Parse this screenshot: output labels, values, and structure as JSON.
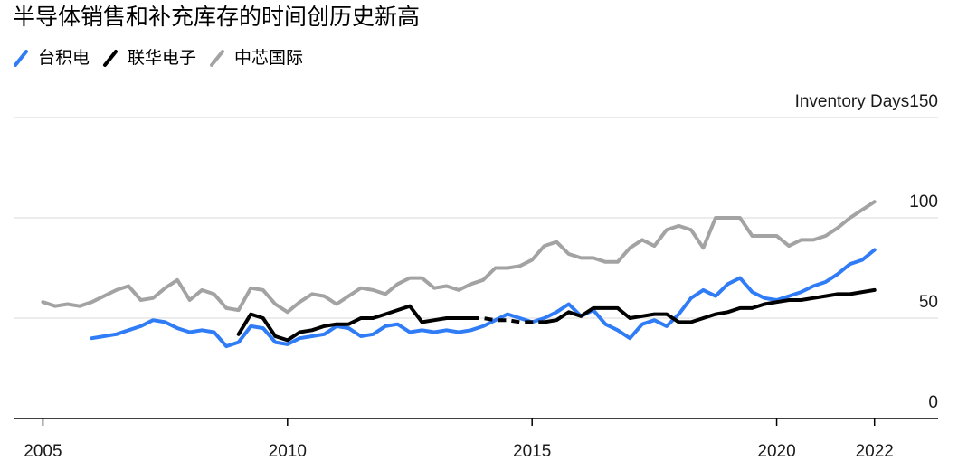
{
  "title": "半导体销售和补充库存的时间创历史新高",
  "colors": {
    "tsmc": "#2f7cf6",
    "umc": "#000000",
    "smic": "#a3a3a3",
    "grid": "#e6e6e6",
    "axis": "#000000"
  },
  "legend": [
    {
      "name": "台积电",
      "color": "#2f7cf6"
    },
    {
      "name": "联华电子",
      "color": "#000000"
    },
    {
      "name": "中芯国际",
      "color": "#a3a3a3"
    }
  ],
  "chart_data": {
    "type": "line",
    "title": "半导体销售和补充库存的时间创历史新高",
    "ylabel": "Inventory Days",
    "xlim": [
      2004.4,
      2023.3
    ],
    "ylim": [
      0,
      150
    ],
    "yticks": [
      0,
      50,
      100,
      150
    ],
    "ytick_labels": [
      "0",
      "50",
      "100",
      "Inventory Days150"
    ],
    "xticks": [
      2005,
      2010,
      2015,
      2020,
      2022
    ],
    "xtick_labels": [
      "2005",
      "2010",
      "2015",
      "2020",
      "2022"
    ],
    "grid": true,
    "legend_position": "top-left",
    "series": [
      {
        "name": "台积电",
        "color": "#2f7cf6",
        "x": [
          2006.0,
          2006.25,
          2006.5,
          2006.75,
          2007.0,
          2007.25,
          2007.5,
          2007.75,
          2008.0,
          2008.25,
          2008.5,
          2008.75,
          2009.0,
          2009.25,
          2009.5,
          2009.75,
          2010.0,
          2010.25,
          2010.5,
          2010.75,
          2011.0,
          2011.25,
          2011.5,
          2011.75,
          2012.0,
          2012.25,
          2012.5,
          2012.75,
          2013.0,
          2013.25,
          2013.5,
          2013.75,
          2014.0,
          2014.25,
          2014.5,
          2014.75,
          2015.0,
          2015.25,
          2015.5,
          2015.75,
          2016.0,
          2016.25,
          2016.5,
          2016.75,
          2017.0,
          2017.25,
          2017.5,
          2017.75,
          2018.0,
          2018.25,
          2018.5,
          2018.75,
          2019.0,
          2019.25,
          2019.5,
          2019.75,
          2020.0,
          2020.25,
          2020.5,
          2020.75,
          2021.0,
          2021.25,
          2021.5,
          2021.75,
          2022.0
        ],
        "values": [
          40,
          41,
          42,
          44,
          46,
          49,
          48,
          45,
          43,
          44,
          43,
          36,
          38,
          46,
          45,
          38,
          37,
          40,
          41,
          42,
          46,
          45,
          41,
          42,
          46,
          47,
          43,
          44,
          43,
          44,
          43,
          44,
          46,
          49,
          52,
          50,
          48,
          50,
          53,
          57,
          51,
          54,
          47,
          44,
          40,
          47,
          49,
          46,
          52,
          60,
          64,
          61,
          67,
          70,
          63,
          60,
          59,
          61,
          63,
          66,
          68,
          72,
          77,
          79,
          84
        ]
      },
      {
        "name": "联华电子",
        "color": "#000000",
        "x": [
          2009.0,
          2009.25,
          2009.5,
          2009.75,
          2010.0,
          2010.25,
          2010.5,
          2010.75,
          2011.0,
          2011.25,
          2011.5,
          2011.75,
          2012.0,
          2012.25,
          2012.5,
          2012.75,
          2013.0,
          2013.25,
          2013.5,
          2013.75,
          2014.0,
          2014.25,
          2014.5,
          2014.75,
          2015.0,
          2015.25,
          2015.5,
          2015.75,
          2016.0,
          2016.25,
          2016.5,
          2016.75,
          2017.0,
          2017.25,
          2017.5,
          2017.75,
          2018.0,
          2018.25,
          2018.5,
          2018.75,
          2019.0,
          2019.25,
          2019.5,
          2019.75,
          2020.0,
          2020.25,
          2020.5,
          2020.75,
          2021.0,
          2021.25,
          2021.5,
          2021.75,
          2022.0
        ],
        "values": [
          42,
          52,
          50,
          41,
          39,
          43,
          44,
          46,
          47,
          47,
          50,
          50,
          52,
          54,
          56,
          48,
          49,
          50,
          50,
          50,
          50,
          49,
          49,
          48,
          48,
          48,
          49,
          53,
          51,
          55,
          55,
          55,
          50,
          51,
          52,
          52,
          48,
          48,
          50,
          52,
          53,
          55,
          55,
          57,
          58,
          59,
          59,
          60,
          61,
          62,
          62,
          63,
          64
        ],
        "dashed_range": [
          2013.75,
          2015.25
        ]
      },
      {
        "name": "中芯国际",
        "color": "#a3a3a3",
        "x": [
          2005.0,
          2005.25,
          2005.5,
          2005.75,
          2006.0,
          2006.25,
          2006.5,
          2006.75,
          2007.0,
          2007.25,
          2007.5,
          2007.75,
          2008.0,
          2008.25,
          2008.5,
          2008.75,
          2009.0,
          2009.25,
          2009.5,
          2009.75,
          2010.0,
          2010.25,
          2010.5,
          2010.75,
          2011.0,
          2011.25,
          2011.5,
          2011.75,
          2012.0,
          2012.25,
          2012.5,
          2012.75,
          2013.0,
          2013.25,
          2013.5,
          2013.75,
          2014.0,
          2014.25,
          2014.5,
          2014.75,
          2015.0,
          2015.25,
          2015.5,
          2015.75,
          2016.0,
          2016.25,
          2016.5,
          2016.75,
          2017.0,
          2017.25,
          2017.5,
          2017.75,
          2018.0,
          2018.25,
          2018.5,
          2018.75,
          2019.0,
          2019.25,
          2019.5,
          2019.75,
          2020.0,
          2020.25,
          2020.5,
          2020.75,
          2021.0,
          2021.25,
          2021.5,
          2021.75,
          2022.0
        ],
        "values": [
          58,
          56,
          57,
          56,
          58,
          61,
          64,
          66,
          59,
          60,
          65,
          69,
          59,
          64,
          62,
          55,
          54,
          65,
          64,
          57,
          53,
          58,
          62,
          61,
          57,
          61,
          65,
          64,
          62,
          67,
          70,
          70,
          65,
          66,
          64,
          67,
          69,
          75,
          75,
          76,
          79,
          86,
          88,
          82,
          80,
          80,
          78,
          78,
          85,
          89,
          86,
          94,
          96,
          94,
          85,
          100,
          100,
          100,
          91,
          91,
          91,
          86,
          89,
          89,
          91,
          95,
          100,
          104,
          108
        ]
      }
    ]
  }
}
